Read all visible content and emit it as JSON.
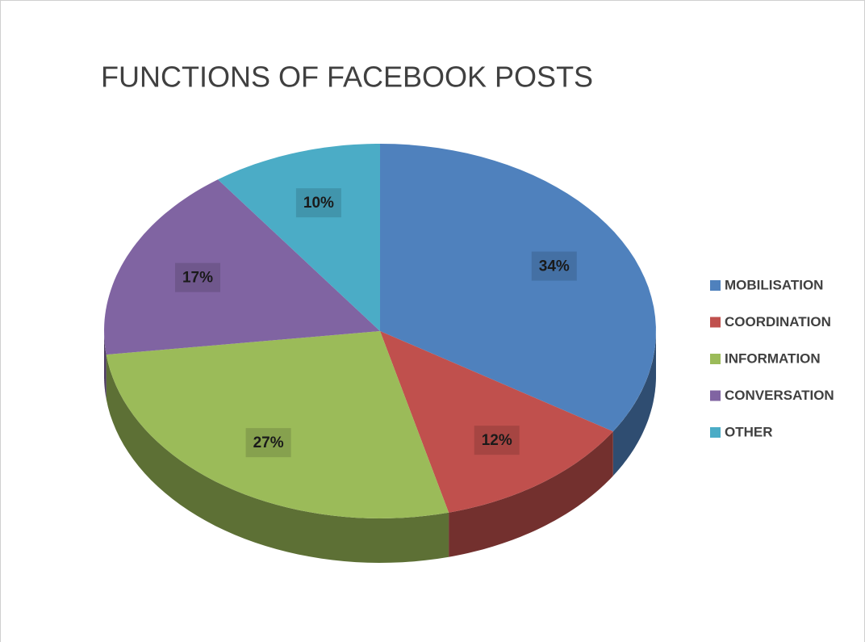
{
  "chart_data": {
    "type": "pie",
    "title": "FUNCTIONS OF FACEBOOK POSTS",
    "categories": [
      "MOBILISATION",
      "COORDINATION",
      "INFORMATION",
      "CONVERSATION",
      "OTHER"
    ],
    "values": [
      34,
      12,
      27,
      17,
      10
    ],
    "value_labels": [
      "34%",
      "12%",
      "27%",
      "17%",
      "10%"
    ],
    "colors": [
      "#4f81bd",
      "#c0504d",
      "#9bbb59",
      "#8064a2",
      "#4bacc6"
    ],
    "legend": "right"
  }
}
